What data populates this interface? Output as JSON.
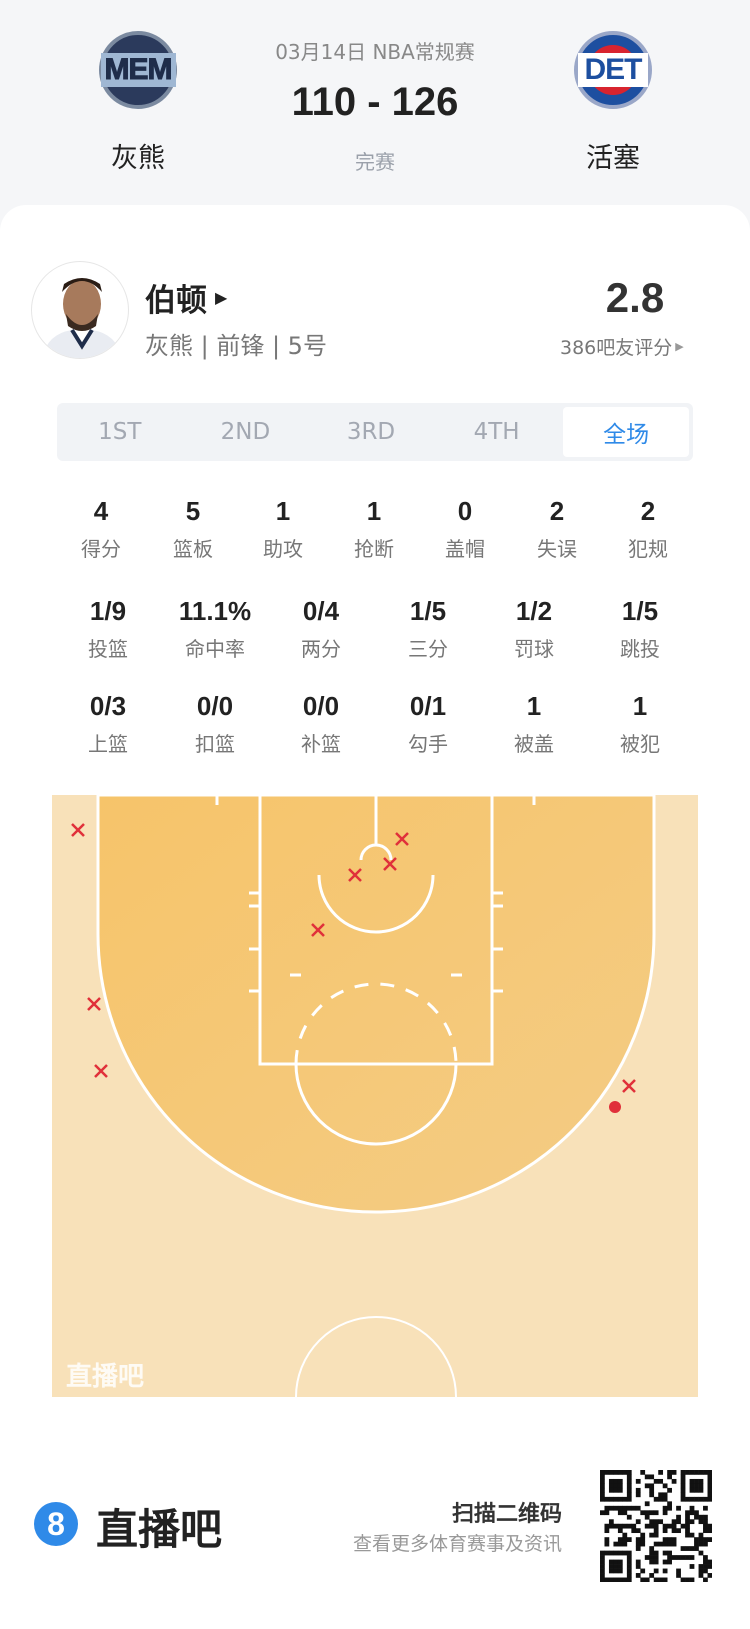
{
  "header": {
    "date_league": "03月14日 NBA常规赛",
    "score": "110 - 126",
    "status": "完赛",
    "home": {
      "abbr": "MEM",
      "name": "灰熊"
    },
    "away": {
      "abbr": "DET",
      "name": "活塞"
    }
  },
  "player": {
    "name": "伯顿",
    "info": "灰熊 | 前锋 | 5号",
    "rating": "2.8",
    "rating_count": "386吧友评分"
  },
  "tabs": [
    {
      "label": "1ST"
    },
    {
      "label": "2ND"
    },
    {
      "label": "3RD"
    },
    {
      "label": "4TH"
    },
    {
      "label": "全场",
      "active": true
    }
  ],
  "stats_row1": [
    {
      "v": "4",
      "l": "得分"
    },
    {
      "v": "5",
      "l": "篮板"
    },
    {
      "v": "1",
      "l": "助攻"
    },
    {
      "v": "1",
      "l": "抢断"
    },
    {
      "v": "0",
      "l": "盖帽"
    },
    {
      "v": "2",
      "l": "失误"
    },
    {
      "v": "2",
      "l": "犯规"
    }
  ],
  "stats_row2": [
    {
      "v": "1/9",
      "l": "投篮"
    },
    {
      "v": "11.1%",
      "l": "命中率"
    },
    {
      "v": "0/4",
      "l": "两分"
    },
    {
      "v": "1/5",
      "l": "三分"
    },
    {
      "v": "1/2",
      "l": "罚球"
    },
    {
      "v": "1/5",
      "l": "跳投"
    }
  ],
  "stats_row3": [
    {
      "v": "0/3",
      "l": "上篮"
    },
    {
      "v": "0/0",
      "l": "扣篮"
    },
    {
      "v": "0/0",
      "l": "补篮"
    },
    {
      "v": "0/1",
      "l": "勾手"
    },
    {
      "v": "1",
      "l": "被盖"
    },
    {
      "v": "1",
      "l": "被犯"
    }
  ],
  "shot_chart": {
    "watermark": "直播吧",
    "shots": [
      "miss",
      "miss",
      "miss",
      "miss",
      "miss",
      "miss",
      "miss",
      "miss",
      "made"
    ],
    "colors": {
      "court_inner": "#f5c66e",
      "court_outer": "#f8e1b9",
      "mark": "#e0303a"
    }
  },
  "footer": {
    "brand": "直播吧",
    "brand_icon": "8",
    "scan": "扫描二维码",
    "more": "查看更多体育赛事及资讯"
  },
  "colors": {
    "accent": "#2f8ae8"
  }
}
